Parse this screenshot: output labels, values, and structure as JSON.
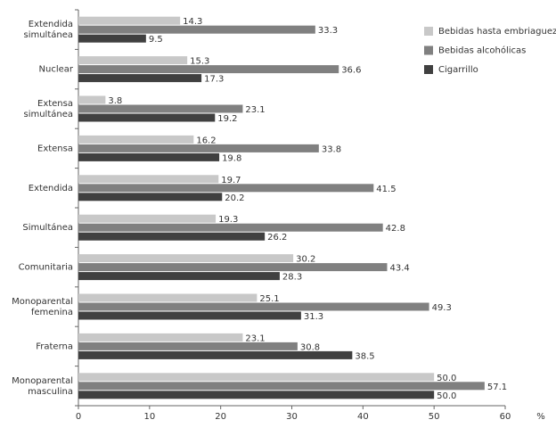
{
  "chart_data": {
    "type": "hbar",
    "categories": [
      "Extendida simultánea",
      "Nuclear",
      "Extensa simultánea",
      "Extensa",
      "Extendida",
      "Simultánea",
      "Comunitaria",
      "Monoparental femenina",
      "Fraterna",
      "Monoparental masculina"
    ],
    "series": [
      {
        "name": "Bebidas hasta embriaguez",
        "color": "#c8c8c8",
        "values": [
          14.3,
          15.3,
          3.8,
          16.2,
          19.7,
          19.3,
          30.2,
          25.1,
          23.1,
          50.0
        ],
        "value_labels": [
          "14.3",
          "15.3",
          "3.8",
          "16.2",
          "19.7",
          "19.3",
          "30.2",
          "25.1",
          "23.1",
          "50.0"
        ]
      },
      {
        "name": "Bebidas alcohólicas",
        "color": "#808080",
        "values": [
          33.3,
          36.6,
          23.1,
          33.8,
          41.5,
          42.8,
          43.4,
          49.3,
          30.8,
          57.1
        ],
        "value_labels": [
          "33.3",
          "36.6",
          "23.1",
          "33.8",
          "41.5",
          "42.8",
          "43.4",
          "49.3",
          "30.8",
          "57.1"
        ]
      },
      {
        "name": "Cigarrillo",
        "color": "#404040",
        "values": [
          9.5,
          17.3,
          19.2,
          19.8,
          20.2,
          26.2,
          28.3,
          31.3,
          38.5,
          50.0
        ],
        "value_labels": [
          "9.5",
          "17.3",
          "19.2",
          "19.8",
          "20.2",
          "26.2",
          "28.3",
          "31.3",
          "38.5",
          "50.0"
        ]
      }
    ],
    "x_label": "%",
    "xlim": [
      0,
      60
    ],
    "xticks": [
      0,
      10,
      20,
      30,
      40,
      50,
      60
    ],
    "legend": "top-right"
  }
}
